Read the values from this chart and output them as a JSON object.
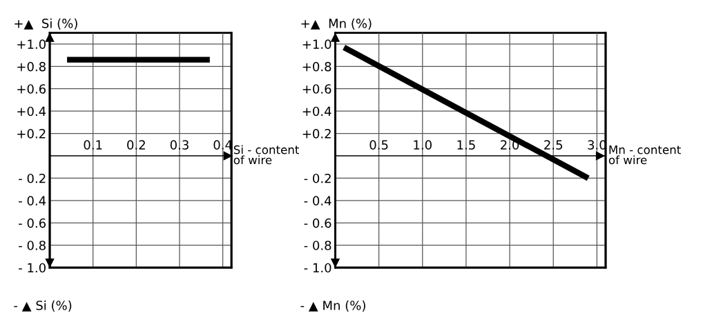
{
  "chart_data": [
    {
      "type": "line",
      "ylabel": "+▲  Si (%)",
      "xlabel": "Si - content\nof wire",
      "annotations": [
        "- ▲ Si (%)"
      ],
      "series": [
        {
          "color": "#000000",
          "x": [
            0.04,
            0.37
          ],
          "values": [
            0.86,
            0.86
          ]
        }
      ],
      "xlim": [
        0,
        0.42
      ],
      "xticks": [
        0.1,
        0.2,
        0.3,
        0.4
      ],
      "ylim": [
        -1.0,
        1.1
      ],
      "yticks": [
        {
          "value": 1.0,
          "label": "+1.0"
        },
        {
          "value": 0.8,
          "label": "+0.8"
        },
        {
          "value": 0.6,
          "label": "+0.6"
        },
        {
          "value": 0.4,
          "label": "+0.4"
        },
        {
          "value": 0.2,
          "label": "+0.2"
        },
        {
          "value": -0.2,
          "label": "- 0.2"
        },
        {
          "value": -0.4,
          "label": "- 0.4"
        },
        {
          "value": -0.6,
          "label": "- 0.6"
        },
        {
          "value": -0.8,
          "label": "- 0.8"
        },
        {
          "value": -1.0,
          "label": "- 1.0"
        }
      ],
      "grid": true,
      "marker": "none",
      "line_style": "solid"
    },
    {
      "type": "line",
      "ylabel": "+▲  Mn (%)",
      "xlabel": "Mn - content\nof wire",
      "annotations": [
        "- ▲ Mn (%)"
      ],
      "series": [
        {
          "color": "#000000",
          "x": [
            0.1,
            2.9
          ],
          "values": [
            0.97,
            -0.2
          ]
        }
      ],
      "xlim": [
        0,
        3.1
      ],
      "xticks": [
        0.5,
        {
          "value": 1.0,
          "label": "1.0"
        },
        1.5,
        {
          "value": 2.0,
          "label": "2.0"
        },
        2.5,
        {
          "value": 3.0,
          "label": "3.0"
        }
      ],
      "ylim": [
        -1.0,
        1.1
      ],
      "yticks": [
        {
          "value": 1.0,
          "label": "+1.0"
        },
        {
          "value": 0.8,
          "label": "+0.8"
        },
        {
          "value": 0.6,
          "label": "+0.6"
        },
        {
          "value": 0.4,
          "label": "+0.4"
        },
        {
          "value": 0.2,
          "label": "+0.2"
        },
        {
          "value": -0.2,
          "label": "- 0.2"
        },
        {
          "value": -0.4,
          "label": "- 0.4"
        },
        {
          "value": -0.6,
          "label": "- 0.6"
        },
        {
          "value": -0.8,
          "label": "- 0.8"
        },
        {
          "value": -1.0,
          "label": "- 1.0"
        }
      ],
      "grid": true,
      "marker": "none",
      "line_style": "solid"
    }
  ]
}
